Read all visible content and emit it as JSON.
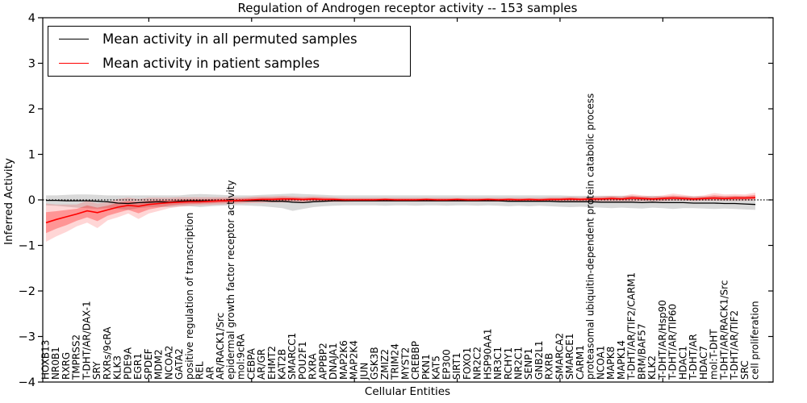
{
  "legend": {
    "items": [
      {
        "label": "Mean activity in all permuted samples",
        "color": "#000000"
      },
      {
        "label": "Mean activity in patient samples",
        "color": "#ff0000"
      }
    ]
  },
  "chart_data": {
    "type": "line",
    "title": "Regulation of Androgen receptor activity -- 153 samples",
    "xlabel": "Cellular Entities",
    "ylabel": "Inferred Activity",
    "ylim": [
      -4,
      4
    ],
    "yticks": [
      -4,
      -3,
      -2,
      -1,
      0,
      1,
      2,
      3,
      4
    ],
    "x_major_tick_every": 10,
    "grid": false,
    "legend_position": "upper left",
    "zero_reference_line": 0,
    "background": "#ffffff",
    "categories": [
      "HOXB13",
      "NR0B1",
      "RXRG",
      "TMPRSS2",
      "T-DHT/AR/DAX-1",
      "SRY",
      "RXRs/9cRA",
      "KLK3",
      "PDE9A",
      "EGR1",
      "SPDEF",
      "MDM2",
      "NCOA2",
      "GATA2",
      "positive regulation of transcription",
      "REL",
      "AR",
      "AR/RACK1/Src",
      "epidermal growth factor receptor activity",
      "mol:9cRA",
      "CEBPA",
      "AR/GR",
      "EHMT2",
      "KAT2B",
      "SMARCC1",
      "POU2F1",
      "RXRA",
      "APPBP2",
      "DNAJA1",
      "MAP2K6",
      "MAP2K4",
      "JUN",
      "GSK3B",
      "ZMIZ2",
      "TRIM24",
      "MYST2",
      "CREBBP",
      "PKN1",
      "KAT5",
      "EP300",
      "SIRT1",
      "FOXO1",
      "NR2C2",
      "HSP90AA1",
      "NR3C1",
      "RCHY1",
      "NR2C1",
      "SENP1",
      "GNB2L1",
      "RXRB",
      "SMARCA2",
      "SMARCE1",
      "CARM1",
      "proteasomal ubiquitin-dependent protein catabolic process",
      "NCOA1",
      "MAPK8",
      "MAPK14",
      "T-DHT/AR/TIF2/CARM1",
      "BRM/BAF57",
      "KLK2",
      "T-DHT/AR/Hsp90",
      "T-DHT/AR/TIP60",
      "HDAC1",
      "T-DHT/AR",
      "HDAC7",
      "mol:T-DHT",
      "T-DHT/AR/RACK1/Src",
      "T-DHT/AR/TIF2",
      "SRC",
      "cell proliferation"
    ],
    "series": [
      {
        "name": "Mean activity in all permuted samples",
        "color": "#000000",
        "values": [
          -0.01,
          -0.01,
          -0.02,
          -0.02,
          -0.02,
          -0.03,
          -0.04,
          -0.07,
          -0.08,
          -0.06,
          -0.05,
          -0.04,
          -0.05,
          -0.03,
          -0.02,
          -0.02,
          -0.02,
          -0.02,
          -0.02,
          -0.02,
          -0.02,
          -0.02,
          -0.03,
          -0.03,
          -0.05,
          -0.06,
          -0.04,
          -0.03,
          -0.02,
          -0.02,
          -0.02,
          -0.02,
          -0.02,
          -0.02,
          -0.02,
          -0.02,
          -0.02,
          -0.02,
          -0.02,
          -0.02,
          -0.02,
          -0.02,
          -0.02,
          -0.02,
          -0.02,
          -0.03,
          -0.03,
          -0.03,
          -0.03,
          -0.03,
          -0.04,
          -0.04,
          -0.04,
          -0.04,
          -0.05,
          -0.05,
          -0.05,
          -0.05,
          -0.06,
          -0.05,
          -0.06,
          -0.06,
          -0.06,
          -0.07,
          -0.07,
          -0.07,
          -0.08,
          -0.08,
          -0.09,
          -0.1
        ],
        "band": {
          "upper": [
            0.1,
            0.1,
            0.11,
            0.12,
            0.12,
            0.11,
            0.1,
            0.1,
            0.1,
            0.1,
            0.1,
            0.1,
            0.1,
            0.1,
            0.12,
            0.13,
            0.12,
            0.11,
            0.1,
            0.1,
            0.1,
            0.11,
            0.12,
            0.13,
            0.14,
            0.13,
            0.12,
            0.11,
            0.1,
            0.1,
            0.1,
            0.1,
            0.1,
            0.1,
            0.1,
            0.1,
            0.1,
            0.1,
            0.1,
            0.1,
            0.1,
            0.1,
            0.1,
            0.1,
            0.1,
            0.1,
            0.1,
            0.1,
            0.1,
            0.1,
            0.1,
            0.09,
            0.09,
            0.09,
            0.09,
            0.09,
            0.09,
            0.09,
            0.08,
            0.09,
            0.08,
            0.08,
            0.08,
            0.08,
            0.08,
            0.08,
            0.08,
            0.08,
            0.08,
            0.08
          ],
          "lower": [
            -0.12,
            -0.13,
            -0.15,
            -0.17,
            -0.18,
            -0.2,
            -0.18,
            -0.2,
            -0.22,
            -0.18,
            -0.16,
            -0.15,
            -0.16,
            -0.14,
            -0.14,
            -0.16,
            -0.14,
            -0.13,
            -0.12,
            -0.12,
            -0.13,
            -0.14,
            -0.16,
            -0.18,
            -0.24,
            -0.2,
            -0.16,
            -0.14,
            -0.13,
            -0.12,
            -0.12,
            -0.12,
            -0.12,
            -0.13,
            -0.12,
            -0.12,
            -0.13,
            -0.12,
            -0.12,
            -0.13,
            -0.12,
            -0.12,
            -0.13,
            -0.12,
            -0.13,
            -0.14,
            -0.13,
            -0.14,
            -0.13,
            -0.14,
            -0.15,
            -0.16,
            -0.15,
            -0.16,
            -0.17,
            -0.18,
            -0.17,
            -0.18,
            -0.19,
            -0.17,
            -0.18,
            -0.2,
            -0.18,
            -0.18,
            -0.19,
            -0.2,
            -0.19,
            -0.2,
            -0.21,
            -0.22
          ],
          "layers": [
            {
              "scale": 1,
              "color": "rgba(0,0,0,0.15)"
            }
          ]
        }
      },
      {
        "name": "Mean activity in patient samples",
        "color": "#ff0000",
        "values": [
          -0.5,
          -0.43,
          -0.37,
          -0.31,
          -0.24,
          -0.28,
          -0.22,
          -0.16,
          -0.12,
          -0.14,
          -0.1,
          -0.08,
          -0.06,
          -0.05,
          -0.04,
          -0.04,
          -0.03,
          -0.02,
          -0.02,
          -0.01,
          0.0,
          0.01,
          0.01,
          0.02,
          0.02,
          0.01,
          0.02,
          0.01,
          0.01,
          0.0,
          0.0,
          0.0,
          0.0,
          0.01,
          0.0,
          0.0,
          0.0,
          0.01,
          0.0,
          0.0,
          0.01,
          0.0,
          0.0,
          0.01,
          0.0,
          0.01,
          0.0,
          0.01,
          0.0,
          0.01,
          0.01,
          0.02,
          0.01,
          0.02,
          0.02,
          0.03,
          0.02,
          0.04,
          0.03,
          0.02,
          0.03,
          0.04,
          0.03,
          0.02,
          0.03,
          0.04,
          0.03,
          0.04,
          0.04,
          0.05
        ],
        "band": {
          "upper": [
            -0.08,
            -0.1,
            -0.1,
            -0.1,
            -0.02,
            -0.08,
            -0.05,
            0.02,
            0.05,
            0.02,
            0.05,
            0.05,
            0.05,
            0.06,
            0.06,
            0.06,
            0.06,
            0.06,
            0.06,
            0.06,
            0.07,
            0.08,
            0.08,
            0.09,
            0.08,
            0.07,
            0.08,
            0.07,
            0.06,
            0.05,
            0.05,
            0.05,
            0.05,
            0.05,
            0.05,
            0.05,
            0.05,
            0.05,
            0.05,
            0.05,
            0.05,
            0.05,
            0.05,
            0.05,
            0.05,
            0.05,
            0.05,
            0.05,
            0.05,
            0.06,
            0.06,
            0.07,
            0.06,
            0.07,
            0.08,
            0.09,
            0.08,
            0.13,
            0.1,
            0.08,
            0.1,
            0.14,
            0.11,
            0.08,
            0.1,
            0.15,
            0.12,
            0.13,
            0.12,
            0.16
          ],
          "lower": [
            -0.92,
            -0.8,
            -0.7,
            -0.58,
            -0.5,
            -0.62,
            -0.45,
            -0.38,
            -0.3,
            -0.42,
            -0.3,
            -0.24,
            -0.18,
            -0.15,
            -0.13,
            -0.12,
            -0.11,
            -0.1,
            -0.09,
            -0.08,
            -0.07,
            -0.07,
            -0.06,
            -0.06,
            -0.05,
            -0.05,
            -0.05,
            -0.05,
            -0.05,
            -0.05,
            -0.04,
            -0.04,
            -0.04,
            -0.04,
            -0.04,
            -0.04,
            -0.04,
            -0.04,
            -0.04,
            -0.04,
            -0.04,
            -0.04,
            -0.04,
            -0.04,
            -0.04,
            -0.04,
            -0.04,
            -0.04,
            -0.04,
            -0.04,
            -0.04,
            -0.04,
            -0.04,
            -0.04,
            -0.03,
            -0.03,
            -0.03,
            -0.03,
            -0.03,
            -0.03,
            -0.03,
            -0.02,
            -0.02,
            -0.03,
            -0.02,
            -0.02,
            -0.02,
            -0.02,
            -0.02,
            -0.01
          ],
          "layers": [
            {
              "scale": 1,
              "color": "rgba(255,0,0,0.16)"
            },
            {
              "scale": 0.55,
              "color": "rgba(255,0,0,0.30)"
            }
          ]
        }
      }
    ]
  }
}
